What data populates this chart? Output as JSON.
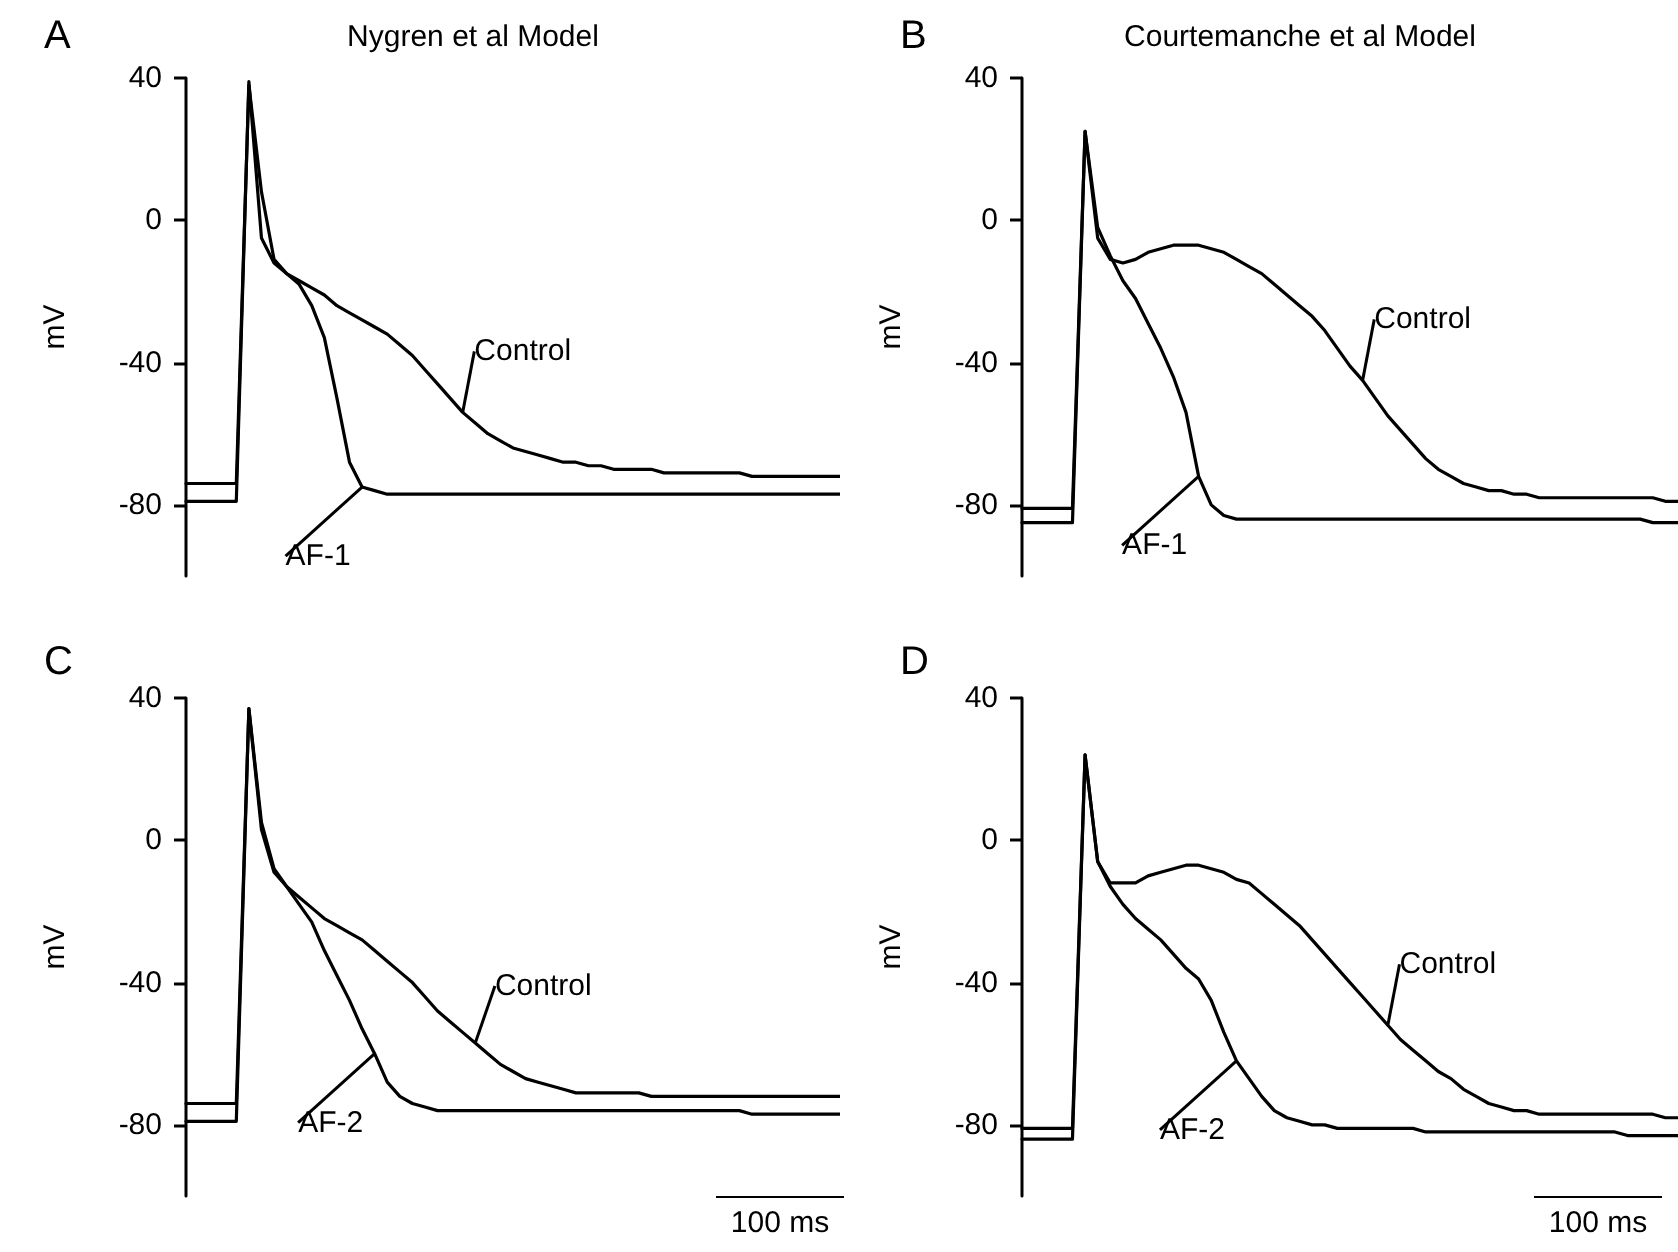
{
  "chart_data": [
    {
      "type": "line",
      "title": "Nygren et al Model",
      "ylabel": "mV",
      "annotations": [
        "A"
      ],
      "ylim": [
        -100,
        40
      ],
      "yticks": [
        40,
        0,
        -40,
        -80
      ],
      "tick_labels": "y",
      "grid": false,
      "legend": false,
      "marker": "none",
      "line_style": "solid",
      "categories": [
        null,
        null,
        null,
        null,
        null,
        null,
        null,
        null,
        null,
        null,
        null,
        null,
        null,
        null,
        null,
        null,
        null,
        null,
        null,
        null,
        null,
        null,
        null,
        null,
        null,
        null,
        null,
        null,
        null,
        null,
        null,
        null,
        null,
        null,
        null,
        null,
        null,
        null,
        null,
        null,
        null,
        null,
        null,
        null,
        null,
        null,
        null,
        null,
        null,
        null,
        null,
        null,
        null
      ],
      "series": [
        {
          "name": "Control",
          "color": "#000000",
          "values": [
            -74,
            -74,
            -74,
            -74,
            -74,
            38,
            8,
            -11,
            -15,
            -17,
            -19,
            -21,
            -24,
            -26,
            -28,
            -30,
            -32,
            -35,
            -38,
            -42,
            -46,
            -50,
            -54,
            -57,
            -60,
            -62,
            -64,
            -65,
            -66,
            -67,
            -68,
            -68,
            -69,
            -69,
            -70,
            -70,
            -70,
            -70,
            -71,
            -71,
            -71,
            -71,
            -71,
            -71,
            -71,
            -72,
            -72,
            -72,
            -72,
            -72,
            -72,
            -72,
            -72
          ]
        },
        {
          "name": "AF-1",
          "color": "#000000",
          "values": [
            -79,
            -79,
            -79,
            -79,
            -79,
            39,
            -5,
            -12,
            -15,
            -18,
            -24,
            -33,
            -50,
            -68,
            -75,
            -76,
            -77,
            -77,
            -77,
            -77,
            -77,
            -77,
            -77,
            -77,
            -77,
            -77,
            -77,
            -77,
            -77,
            -77,
            -77,
            -77,
            -77,
            -77,
            -77,
            -77,
            -77,
            -77,
            -77,
            -77,
            -77,
            -77,
            -77,
            -77,
            -77,
            -77,
            -77,
            -77,
            -77,
            -77,
            -77,
            -77,
            -77
          ]
        }
      ]
    },
    {
      "type": "line",
      "title": "Courtemanche et al Model",
      "ylabel": "mV",
      "annotations": [
        "B"
      ],
      "ylim": [
        -100,
        40
      ],
      "yticks": [
        40,
        0,
        -40,
        -80
      ],
      "tick_labels": "y",
      "grid": false,
      "legend": false,
      "marker": "none",
      "line_style": "solid",
      "categories": [
        null,
        null,
        null,
        null,
        null,
        null,
        null,
        null,
        null,
        null,
        null,
        null,
        null,
        null,
        null,
        null,
        null,
        null,
        null,
        null,
        null,
        null,
        null,
        null,
        null,
        null,
        null,
        null,
        null,
        null,
        null,
        null,
        null,
        null,
        null,
        null,
        null,
        null,
        null,
        null,
        null,
        null,
        null,
        null,
        null,
        null,
        null,
        null,
        null,
        null,
        null,
        null,
        null
      ],
      "series": [
        {
          "name": "Control",
          "color": "#000000",
          "values": [
            -81,
            -81,
            -81,
            -81,
            -81,
            25,
            -5,
            -11,
            -12,
            -11,
            -9,
            -8,
            -7,
            -7,
            -7,
            -8,
            -9,
            -11,
            -13,
            -15,
            -18,
            -21,
            -24,
            -27,
            -31,
            -36,
            -41,
            -45,
            -50,
            -55,
            -59,
            -63,
            -67,
            -70,
            -72,
            -74,
            -75,
            -76,
            -76,
            -77,
            -77,
            -78,
            -78,
            -78,
            -78,
            -78,
            -78,
            -78,
            -78,
            -78,
            -78,
            -79,
            -79
          ]
        },
        {
          "name": "AF-1",
          "color": "#000000",
          "values": [
            -85,
            -85,
            -85,
            -85,
            -85,
            25,
            -2,
            -10,
            -17,
            -22,
            -29,
            -36,
            -44,
            -54,
            -72,
            -80,
            -83,
            -84,
            -84,
            -84,
            -84,
            -84,
            -84,
            -84,
            -84,
            -84,
            -84,
            -84,
            -84,
            -84,
            -84,
            -84,
            -84,
            -84,
            -84,
            -84,
            -84,
            -84,
            -84,
            -84,
            -84,
            -84,
            -84,
            -84,
            -84,
            -84,
            -84,
            -84,
            -84,
            -84,
            -85,
            -85,
            -85
          ]
        }
      ]
    },
    {
      "type": "line",
      "ylabel": "mV",
      "annotations": [
        "C",
        "100 ms"
      ],
      "ylim": [
        -100,
        40
      ],
      "yticks": [
        40,
        0,
        -40,
        -80
      ],
      "tick_labels": "y",
      "grid": false,
      "legend": false,
      "marker": "none",
      "line_style": "solid",
      "categories": [
        null,
        null,
        null,
        null,
        null,
        null,
        null,
        null,
        null,
        null,
        null,
        null,
        null,
        null,
        null,
        null,
        null,
        null,
        null,
        null,
        null,
        null,
        null,
        null,
        null,
        null,
        null,
        null,
        null,
        null,
        null,
        null,
        null,
        null,
        null,
        null,
        null,
        null,
        null,
        null,
        null,
        null,
        null,
        null,
        null,
        null,
        null,
        null,
        null,
        null,
        null,
        null,
        null
      ],
      "series": [
        {
          "name": "Control",
          "color": "#000000",
          "values": [
            -74,
            -74,
            -74,
            -74,
            -74,
            37,
            5,
            -8,
            -13,
            -16,
            -19,
            -22,
            -24,
            -26,
            -28,
            -31,
            -34,
            -37,
            -40,
            -44,
            -48,
            -51,
            -54,
            -57,
            -60,
            -63,
            -65,
            -67,
            -68,
            -69,
            -70,
            -71,
            -71,
            -71,
            -71,
            -71,
            -71,
            -72,
            -72,
            -72,
            -72,
            -72,
            -72,
            -72,
            -72,
            -72,
            -72,
            -72,
            -72,
            -72,
            -72,
            -72,
            -72
          ]
        },
        {
          "name": "AF-2",
          "color": "#000000",
          "values": [
            -79,
            -79,
            -79,
            -79,
            -79,
            37,
            3,
            -9,
            -13,
            -18,
            -23,
            -31,
            -38,
            -45,
            -53,
            -60,
            -68,
            -72,
            -74,
            -75,
            -76,
            -76,
            -76,
            -76,
            -76,
            -76,
            -76,
            -76,
            -76,
            -76,
            -76,
            -76,
            -76,
            -76,
            -76,
            -76,
            -76,
            -76,
            -76,
            -76,
            -76,
            -76,
            -76,
            -76,
            -76,
            -77,
            -77,
            -77,
            -77,
            -77,
            -77,
            -77,
            -77
          ]
        }
      ]
    },
    {
      "type": "line",
      "ylabel": "mV",
      "annotations": [
        "D",
        "100 ms"
      ],
      "ylim": [
        -100,
        40
      ],
      "yticks": [
        40,
        0,
        -40,
        -80
      ],
      "tick_labels": "y",
      "grid": false,
      "legend": false,
      "marker": "none",
      "line_style": "solid",
      "categories": [
        null,
        null,
        null,
        null,
        null,
        null,
        null,
        null,
        null,
        null,
        null,
        null,
        null,
        null,
        null,
        null,
        null,
        null,
        null,
        null,
        null,
        null,
        null,
        null,
        null,
        null,
        null,
        null,
        null,
        null,
        null,
        null,
        null,
        null,
        null,
        null,
        null,
        null,
        null,
        null,
        null,
        null,
        null,
        null,
        null,
        null,
        null,
        null,
        null,
        null,
        null,
        null,
        null
      ],
      "series": [
        {
          "name": "Control",
          "color": "#000000",
          "values": [
            -81,
            -81,
            -81,
            -81,
            -81,
            24,
            -6,
            -12,
            -12,
            -12,
            -10,
            -9,
            -8,
            -7,
            -7,
            -8,
            -9,
            -11,
            -12,
            -15,
            -18,
            -21,
            -24,
            -28,
            -32,
            -36,
            -40,
            -44,
            -48,
            -52,
            -56,
            -59,
            -62,
            -65,
            -67,
            -70,
            -72,
            -74,
            -75,
            -76,
            -76,
            -77,
            -77,
            -77,
            -77,
            -77,
            -77,
            -77,
            -77,
            -77,
            -77,
            -78,
            -78
          ]
        },
        {
          "name": "AF-2",
          "color": "#000000",
          "values": [
            -84,
            -84,
            -84,
            -84,
            -84,
            24,
            -6,
            -13,
            -18,
            -22,
            -25,
            -28,
            -32,
            -36,
            -39,
            -45,
            -54,
            -62,
            -67,
            -72,
            -76,
            -78,
            -79,
            -80,
            -80,
            -81,
            -81,
            -81,
            -81,
            -81,
            -81,
            -81,
            -82,
            -82,
            -82,
            -82,
            -82,
            -82,
            -82,
            -82,
            -82,
            -82,
            -82,
            -82,
            -82,
            -82,
            -82,
            -82,
            -83,
            -83,
            -83,
            -83,
            -83
          ]
        }
      ]
    }
  ]
}
